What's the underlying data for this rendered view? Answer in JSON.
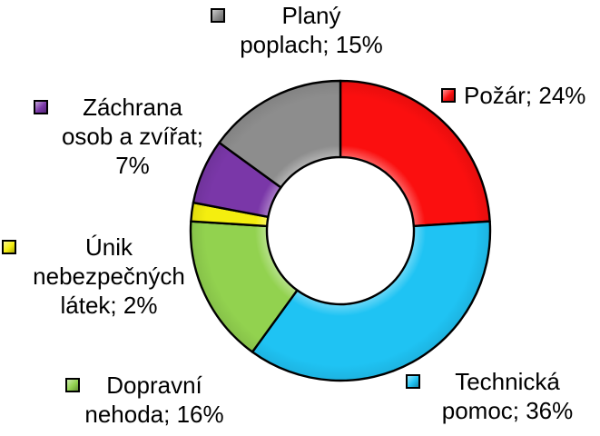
{
  "chart_data": {
    "type": "pie",
    "subtype": "donut",
    "title": "",
    "unit": "%",
    "total": 100,
    "start_angle_deg": 0,
    "direction": "clockwise",
    "hole_ratio": 0.49,
    "legend_position": "around-as-data-labels",
    "background": "#ffffff",
    "outline_color": "#000000",
    "label_color": "#000000",
    "categories": [
      "Požár",
      "Technická pomoc",
      "Dopravní nehoda",
      "Únik nebezpečných látek",
      "Záchrana osob a zvířat",
      "Planý poplach"
    ],
    "values": [
      24,
      36,
      16,
      2,
      7,
      15
    ],
    "slices": [
      {
        "key": "pozar",
        "name": "Požár",
        "value": 24,
        "color": "#fb0f0f",
        "label": "Požár; 24%",
        "label_lines": [
          "Požár; 24%"
        ]
      },
      {
        "key": "technicka-pomoc",
        "name": "Technická pomoc",
        "value": 36,
        "color": "#1fc3f3",
        "label": "Technická pomoc; 36%",
        "label_lines": [
          "Technická",
          "pomoc; 36%"
        ]
      },
      {
        "key": "dopravni-nehoda",
        "name": "Dopravní nehoda",
        "value": 16,
        "color": "#92d24f",
        "label": "Dopravní nehoda; 16%",
        "label_lines": [
          "Dopravní",
          "nehoda; 16%"
        ]
      },
      {
        "key": "unik-nebezpecnych-latek",
        "name": "Únik nebezpečných látek",
        "value": 2,
        "color": "#f4ee0f",
        "label": "Únik nebezpečných látek; 2%",
        "label_lines": [
          "Únik",
          "nebezpečných",
          "látek; 2%"
        ]
      },
      {
        "key": "zachrana-osob-a-zvirat",
        "name": "Záchrana osob a zvířat",
        "value": 7,
        "color": "#7a37a8",
        "label": "Záchrana osob a zvířat; 7%",
        "label_lines": [
          "Záchrana",
          "osob a zvířat;",
          "7%"
        ]
      },
      {
        "key": "plany-poplach",
        "name": "Planý poplach",
        "value": 15,
        "color": "#8d8d8d",
        "label": "Planý poplach; 15%",
        "label_lines": [
          "Planý",
          "poplach; 15%"
        ]
      }
    ]
  }
}
